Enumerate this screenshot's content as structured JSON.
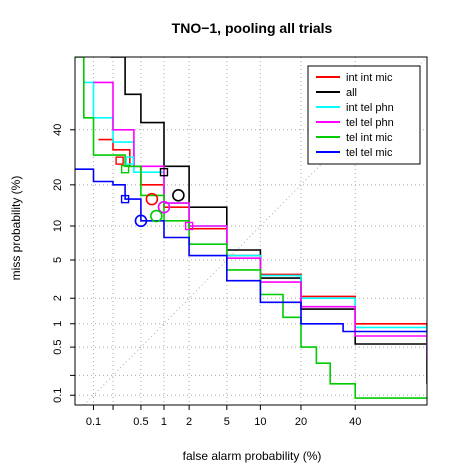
{
  "chart_data": {
    "type": "line",
    "title": "TNO−1, pooling all trials",
    "xlabel": "false alarm probability (%)",
    "ylabel": "miss probability (%)",
    "x_scale": "probit",
    "y_scale": "probit",
    "xlim": [
      0.05,
      70
    ],
    "ylim": [
      0.07,
      70
    ],
    "x_ticks": [
      "0.1",
      "0.5",
      "1",
      "2",
      "5",
      "10",
      "20",
      "40"
    ],
    "x_tick_values": [
      0.1,
      0.5,
      1,
      2,
      5,
      10,
      20,
      40
    ],
    "x_minor_ticks": [
      0.2
    ],
    "y_ticks": [
      "0.1",
      "0.5",
      "1",
      "2",
      "5",
      "10",
      "20",
      "40"
    ],
    "y_tick_values": [
      0.1,
      0.5,
      1,
      2,
      5,
      10,
      20,
      40
    ],
    "y_minor_ticks": [
      0.2
    ],
    "grid": true,
    "legend_position": "top-right",
    "series": [
      {
        "name": "int int mic",
        "color": "#ff0000",
        "points": [
          [
            0.12,
            36
          ],
          [
            0.2,
            32
          ],
          [
            0.35,
            26
          ],
          [
            0.5,
            20
          ],
          [
            1,
            14
          ],
          [
            2,
            9.5
          ],
          [
            5,
            5.5
          ],
          [
            10,
            3.6
          ],
          [
            20,
            2.1
          ],
          [
            40,
            1.0
          ],
          [
            70,
            0.5
          ]
        ],
        "min_cost_point": [
          0.7,
          16
        ],
        "eer_point": [
          0.25,
          28
        ]
      },
      {
        "name": "all",
        "color": "#000000",
        "points": [
          [
            0.18,
            70
          ],
          [
            0.3,
            55
          ],
          [
            0.5,
            43
          ],
          [
            1,
            26
          ],
          [
            2,
            14
          ],
          [
            5,
            6.2
          ],
          [
            10,
            3.3
          ],
          [
            20,
            1.5
          ],
          [
            40,
            0.55
          ],
          [
            70,
            0.15
          ]
        ],
        "min_cost_point": [
          1.5,
          17
        ],
        "eer_point": [
          1.0,
          24
        ]
      },
      {
        "name": "int tel phn",
        "color": "#00ffff",
        "points": [
          [
            0.07,
            60
          ],
          [
            0.1,
            45
          ],
          [
            0.2,
            35
          ],
          [
            0.4,
            24
          ],
          [
            1,
            15
          ],
          [
            2,
            10
          ],
          [
            5,
            5.5
          ],
          [
            10,
            3.5
          ],
          [
            20,
            2.0
          ],
          [
            40,
            0.9
          ],
          [
            70,
            0.4
          ]
        ],
        "min_cost_point": [
          1.0,
          14
        ],
        "eer_point": [
          0.35,
          28
        ]
      },
      {
        "name": "tel tel phn",
        "color": "#ff00ff",
        "points": [
          [
            0.1,
            60
          ],
          [
            0.2,
            40
          ],
          [
            0.4,
            26
          ],
          [
            1,
            15
          ],
          [
            2,
            10
          ],
          [
            5,
            5.2
          ],
          [
            10,
            3.0
          ],
          [
            20,
            1.6
          ],
          [
            40,
            0.7
          ],
          [
            70,
            0.35
          ]
        ],
        "min_cost_point": [
          1.0,
          14
        ],
        "eer_point": [
          2.0,
          10
        ]
      },
      {
        "name": "tel int mic",
        "color": "#00cc00",
        "points": [
          [
            0.05,
            70
          ],
          [
            0.07,
            45
          ],
          [
            0.1,
            30
          ],
          [
            0.3,
            26
          ],
          [
            0.5,
            17
          ],
          [
            1,
            11
          ],
          [
            2,
            7
          ],
          [
            5,
            4
          ],
          [
            10,
            2.2
          ],
          [
            15,
            1.2
          ],
          [
            20,
            0.5
          ],
          [
            25,
            0.3
          ],
          [
            30,
            0.15
          ],
          [
            40,
            0.09
          ],
          [
            70,
            0.09
          ]
        ],
        "min_cost_point": [
          0.8,
          12
        ],
        "eer_point": [
          0.3,
          25
        ]
      },
      {
        "name": "tel tel mic",
        "color": "#0000ff",
        "points": [
          [
            0.05,
            25
          ],
          [
            0.08,
            25
          ],
          [
            0.1,
            21
          ],
          [
            0.2,
            20
          ],
          [
            0.3,
            16
          ],
          [
            0.5,
            11
          ],
          [
            1,
            8
          ],
          [
            2,
            5.5
          ],
          [
            5,
            3.1
          ],
          [
            10,
            1.8
          ],
          [
            20,
            1.0
          ],
          [
            35,
            0.8
          ],
          [
            70,
            0.8
          ]
        ],
        "min_cost_point": [
          0.5,
          11
        ],
        "eer_point": [
          0.3,
          16
        ]
      }
    ]
  }
}
